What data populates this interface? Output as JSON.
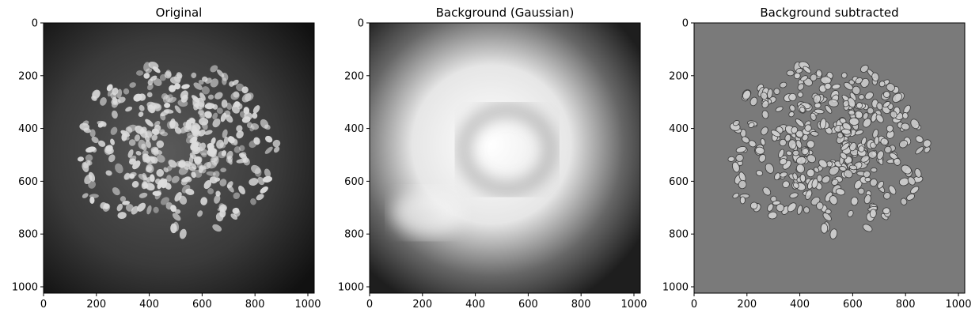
{
  "panels": [
    {
      "title": "Original",
      "xticks": [
        "0",
        "200",
        "400",
        "600",
        "800",
        "1000"
      ],
      "yticks": [
        "0",
        "200",
        "400",
        "600",
        "800",
        "1000"
      ],
      "style": "original"
    },
    {
      "title": "Background (Gaussian)",
      "xticks": [
        "0",
        "200",
        "400",
        "600",
        "800",
        "1000"
      ],
      "yticks": [
        "0",
        "200",
        "400",
        "600",
        "800",
        "1000"
      ],
      "style": "background"
    },
    {
      "title": "Background subtracted",
      "xticks": [
        "0",
        "200",
        "400",
        "600",
        "800",
        "1000"
      ],
      "yticks": [
        "0",
        "200",
        "400",
        "600",
        "800",
        "1000"
      ],
      "style": "subtracted"
    }
  ],
  "axis": {
    "xlim": [
      0,
      1024
    ],
    "ylim": [
      1024,
      0
    ],
    "tick_values": [
      0,
      200,
      400,
      600,
      800,
      1000
    ]
  },
  "colors": {
    "axis": "#000000",
    "dark_bg": "#1a1a1a",
    "gray_bg": "#777777",
    "nuclei": "#e6e6e6"
  }
}
